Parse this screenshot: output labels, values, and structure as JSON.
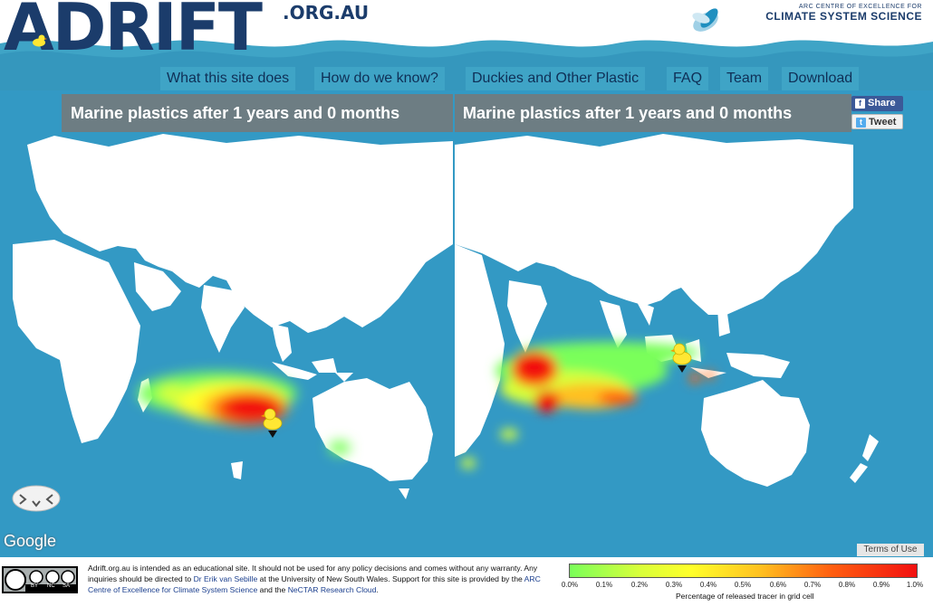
{
  "header": {
    "logo_text": "ADRIFT",
    "logo_domain": ".ORG.AU",
    "partner_line1": "ARC CENTRE OF EXCELLENCE FOR",
    "partner_line2": "CLIMATE SYSTEM SCIENCE"
  },
  "nav": {
    "items": [
      {
        "label": "What this site does"
      },
      {
        "label": "How do we know?"
      },
      {
        "label": "Duckies and Other Plastic"
      },
      {
        "label": "FAQ"
      },
      {
        "label": "Team"
      },
      {
        "label": "Download"
      }
    ]
  },
  "maps": [
    {
      "title": "Marine plastics after 1 years and 0 months"
    },
    {
      "title": "Marine plastics after 1 years and 0 months"
    }
  ],
  "social": {
    "share_label": "Share",
    "tweet_label": "Tweet"
  },
  "map_footer": {
    "google_label": "Google",
    "terms_label": "Terms of Use"
  },
  "footer": {
    "disclaimer_part1": "Adrift.org.au is intended as an educational site. It should not be used for any policy decisions and comes without any warranty. Any inquiries should be directed to ",
    "disclaimer_link1": "Dr Erik van Sebille",
    "disclaimer_part2": " at the University of New South Wales. Support for this site is provided by the ",
    "disclaimer_link2": "ARC Centre of Excellence for Climate System Science",
    "disclaimer_part3": " and the ",
    "disclaimer_link3": "NeCTAR Research Cloud",
    "disclaimer_part4": ".",
    "cc_labels": [
      "BY",
      "NC",
      "SA"
    ]
  },
  "legend": {
    "ticks": [
      "0.0%",
      "0.1%",
      "0.2%",
      "0.3%",
      "0.4%",
      "0.5%",
      "0.6%",
      "0.7%",
      "0.8%",
      "0.9%",
      "1.0%"
    ],
    "label": "Percentage of released tracer in grid cell",
    "colors": [
      "#7aff5a",
      "#d8ff3a",
      "#ffff2a",
      "#ffc020",
      "#ff6010",
      "#f21010"
    ]
  },
  "colors": {
    "ocean": "#3399c4",
    "brand_navy": "#1b3c6b",
    "nav_bg": "#3fa4c6",
    "duck": "#ffe733"
  }
}
